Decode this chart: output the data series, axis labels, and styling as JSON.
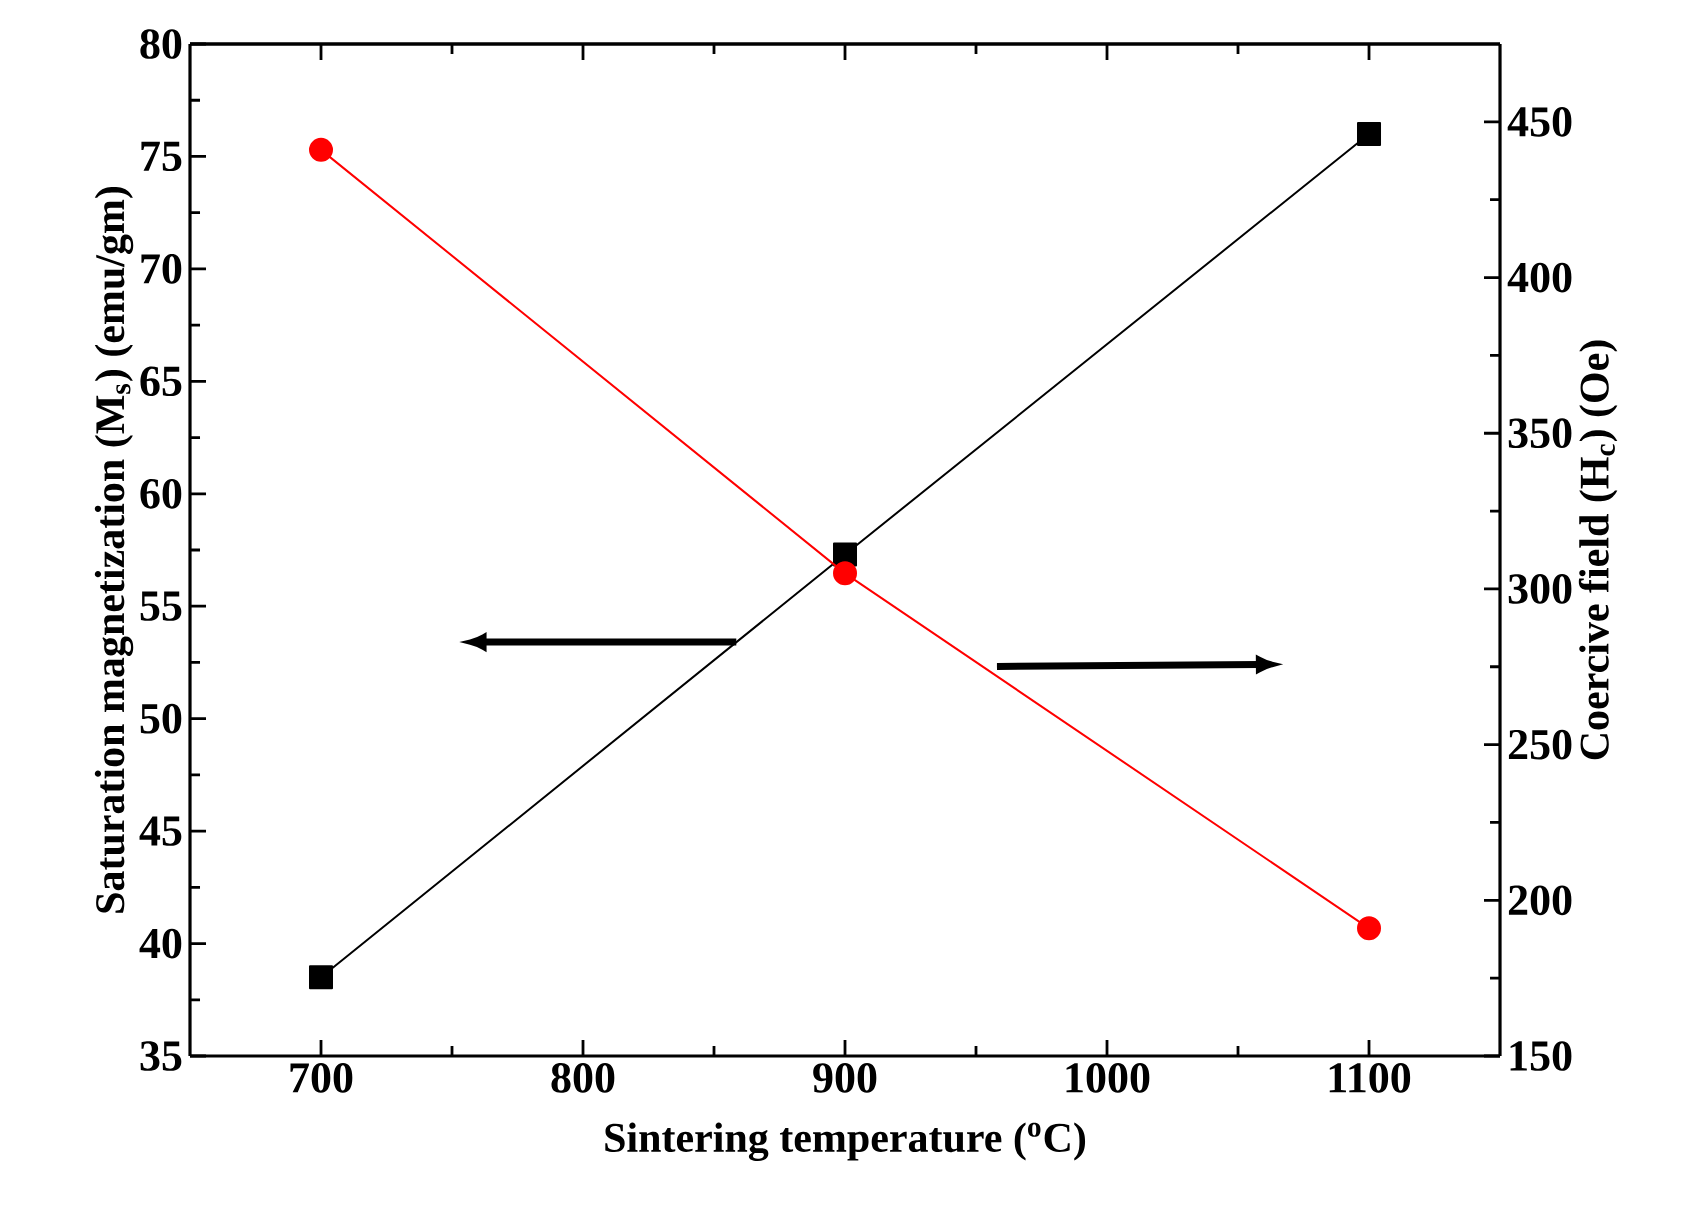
{
  "chart_data": {
    "type": "line",
    "xlabel": "Sintering temperature ($^{o}$C)",
    "ylabel": "Saturation magnetization (M$_{s}$) (emu/gm)",
    "y2label": "Coercive field (H$_{c}$) (Oe)",
    "x": [
      700,
      900,
      1100
    ],
    "series": [
      {
        "color": "#000000",
        "marker": "square",
        "values": [
          38.5,
          57.3,
          76.0
        ]
      },
      {
        "color": "#ff0000",
        "marker": "circle",
        "axis": "y2",
        "values": [
          441,
          305,
          191
        ]
      }
    ],
    "xlim": [
      650,
      1150
    ],
    "xticks": [
      700,
      800,
      900,
      1000,
      1100
    ],
    "ylim": [
      35,
      80
    ],
    "yticks": [
      35,
      40,
      45,
      50,
      55,
      60,
      65,
      70,
      75,
      80
    ],
    "y2lim": [
      150,
      475
    ],
    "y2ticks": [
      150,
      200,
      250,
      300,
      350,
      400,
      450
    ],
    "line_style": "solid",
    "grid": false
  }
}
